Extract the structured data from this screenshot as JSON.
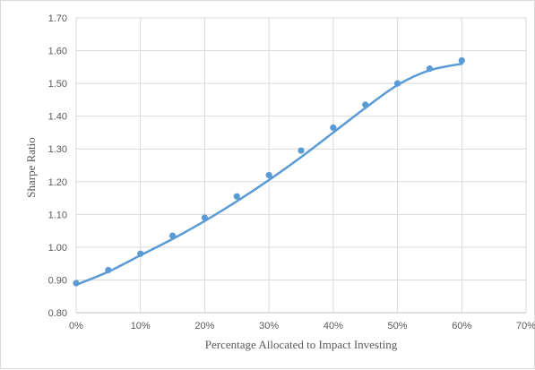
{
  "chart_data": {
    "type": "scatter",
    "title": "",
    "xlabel": "Percentage Allocated to Impact Investing",
    "ylabel": "Sharpe Ratio",
    "xlim": [
      0,
      0.7
    ],
    "ylim": [
      0.8,
      1.7
    ],
    "x_ticks": [
      0,
      0.1,
      0.2,
      0.3,
      0.4,
      0.5,
      0.6,
      0.7
    ],
    "x_tick_labels": [
      "0%",
      "10%",
      "20%",
      "30%",
      "40%",
      "50%",
      "60%",
      "70%"
    ],
    "y_ticks": [
      0.8,
      0.9,
      1.0,
      1.1,
      1.2,
      1.3,
      1.4,
      1.5,
      1.6,
      1.7
    ],
    "y_tick_labels": [
      "0.80",
      "0.90",
      "1.00",
      "1.10",
      "1.20",
      "1.30",
      "1.40",
      "1.50",
      "1.60",
      "1.70"
    ],
    "grid": true,
    "legend": false,
    "series": [
      {
        "x": [
          0.0,
          0.05,
          0.1,
          0.15,
          0.2,
          0.25,
          0.3,
          0.35,
          0.4,
          0.45,
          0.5,
          0.55,
          0.6
        ],
        "values": [
          0.89,
          0.93,
          0.98,
          1.035,
          1.09,
          1.155,
          1.22,
          1.295,
          1.365,
          1.435,
          1.5,
          1.545,
          1.57
        ],
        "color": "#5b9bd5"
      }
    ],
    "trendline": {
      "x": [
        0.0,
        0.05,
        0.1,
        0.15,
        0.2,
        0.25,
        0.3,
        0.35,
        0.4,
        0.45,
        0.5,
        0.55,
        0.6
      ],
      "values": [
        0.885,
        0.925,
        0.975,
        1.025,
        1.08,
        1.14,
        1.205,
        1.275,
        1.35,
        1.425,
        1.495,
        1.54,
        1.56
      ],
      "color": "#5b9bd5"
    }
  }
}
